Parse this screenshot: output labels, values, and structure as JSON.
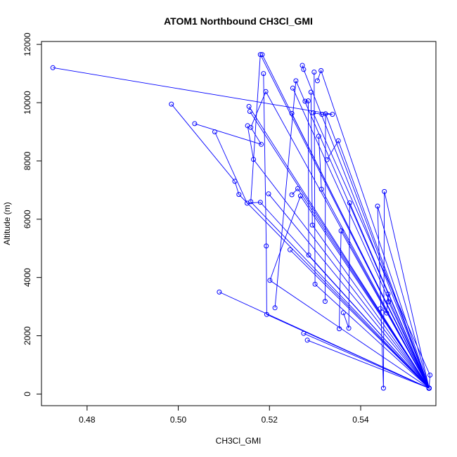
{
  "chart_data": {
    "type": "line",
    "title": "ATOM1 Northbound CH3Cl_GMI",
    "xlabel": "CH3Cl_GMI",
    "ylabel": "Altitude (m)",
    "xlim": [
      0.47,
      0.5565
    ],
    "ylim": [
      -400,
      12100
    ],
    "xticks": [
      0.48,
      0.5,
      0.52,
      0.54
    ],
    "xtick_labels": [
      "0.48",
      "0.50",
      "0.52",
      "0.54"
    ],
    "yticks": [
      0,
      2000,
      4000,
      6000,
      8000,
      10000,
      12000
    ],
    "ytick_labels": [
      "0",
      "2000",
      "4000",
      "6000",
      "8000",
      "10000",
      "12000"
    ],
    "grid": false,
    "line_color": "#0000ff",
    "marker": "open-circle",
    "series": [
      {
        "x": [
          0.4725,
          0.5338,
          0.5315,
          0.5296,
          0.5552,
          0.555,
          0.518,
          0.5159,
          0.555,
          0.555,
          0.555,
          0.5452,
          0.545,
          0.5437,
          0.555,
          0.555,
          0.555,
          0.555,
          0.555,
          0.555,
          0.555,
          0.555,
          0.555,
          0.555,
          0.555,
          0.555,
          0.555,
          0.555,
          0.555,
          0.555,
          0.555,
          0.555,
          0.555,
          0.555,
          0.555,
          0.555
        ],
        "y": [
          11200,
          9600,
          9600,
          9650,
          650,
          200,
          11650,
          6600,
          200,
          200,
          200,
          6950,
          200,
          6450,
          200,
          200,
          200,
          200,
          200,
          200,
          200,
          200,
          200,
          200,
          200,
          200,
          200,
          200,
          200,
          200,
          200,
          200,
          200,
          200,
          200,
          200
        ]
      },
      {
        "x": [
          0.4985,
          0.5124,
          0.5133,
          0.555,
          0.555,
          0.5283,
          0.555,
          0.555,
          0.5251,
          0.555,
          0.555,
          0.555,
          0.555,
          0.555,
          0.555
        ],
        "y": [
          9950,
          7300,
          6850,
          200,
          200,
          1850,
          200,
          200,
          10500,
          200,
          200,
          200,
          200,
          200,
          200
        ]
      },
      {
        "x": [
          0.5036,
          0.5182,
          0.5159,
          0.5192,
          0.555,
          0.555,
          0.555,
          0.5201,
          0.5268,
          0.555,
          0.555,
          0.555
        ],
        "y": [
          9280,
          8570,
          9150,
          10380,
          200,
          200,
          200,
          3900,
          6800,
          200,
          200,
          200
        ]
      },
      {
        "x": [
          0.508,
          0.5151,
          0.518,
          0.555,
          0.555,
          0.555,
          0.555,
          0.555,
          0.555,
          0.555,
          0.555,
          0.555,
          0.555,
          0.555
        ],
        "y": [
          9000,
          6550,
          6580,
          200,
          200,
          200,
          200,
          200,
          200,
          200,
          200,
          200,
          200,
          200
        ]
      },
      {
        "x": [
          0.509,
          0.555,
          0.555,
          0.5275,
          0.555,
          0.555,
          0.555,
          0.555,
          0.555,
          0.555,
          0.555,
          0.555
        ],
        "y": [
          3500,
          200,
          200,
          2080,
          200,
          200,
          200,
          200,
          200,
          200,
          200,
          200
        ]
      },
      {
        "x": [
          0.5152,
          0.5165,
          0.555,
          0.555,
          0.555,
          0.555,
          0.555,
          0.555,
          0.555,
          0.555,
          0.555,
          0.555
        ],
        "y": [
          9210,
          8050,
          200,
          200,
          200,
          200,
          200,
          200,
          200,
          200,
          200,
          200
        ]
      },
      {
        "x": [
          0.5187,
          0.5193,
          0.5194,
          0.555,
          0.555,
          0.555,
          0.555,
          0.555,
          0.555,
          0.555,
          0.555,
          0.555
        ],
        "y": [
          11000,
          5080,
          2730,
          200,
          200,
          200,
          200,
          200,
          200,
          200,
          200,
          200
        ]
      },
      {
        "x": [
          0.5212,
          0.5258,
          0.555,
          0.555,
          0.555,
          0.555,
          0.555,
          0.555,
          0.555,
          0.555,
          0.555,
          0.555
        ],
        "y": [
          2960,
          10750,
          200,
          200,
          200,
          200,
          200,
          200,
          200,
          200,
          200,
          200
        ]
      },
      {
        "x": [
          0.5155,
          0.555,
          0.555,
          0.555,
          0.555,
          0.555,
          0.555,
          0.555,
          0.555,
          0.555
        ],
        "y": [
          9870,
          200,
          200,
          200,
          200,
          200,
          200,
          200,
          200,
          200
        ]
      },
      {
        "x": [
          0.5249,
          0.555,
          0.555,
          0.555,
          0.555,
          0.555,
          0.555,
          0.555,
          0.555,
          0.555
        ],
        "y": [
          9630,
          200,
          200,
          200,
          200,
          200,
          200,
          200,
          200,
          200
        ]
      },
      {
        "x": [
          0.5249,
          0.5262,
          0.555,
          0.555,
          0.555,
          0.555,
          0.555,
          0.555,
          0.555,
          0.555
        ],
        "y": [
          6840,
          7050,
          200,
          200,
          200,
          200,
          200,
          200,
          200,
          200
        ]
      },
      {
        "x": [
          0.5272,
          0.5275,
          0.555,
          0.555,
          0.555,
          0.555,
          0.555,
          0.555,
          0.555
        ],
        "y": [
          11280,
          11140,
          200,
          200,
          200,
          200,
          200,
          200,
          200
        ]
      },
      {
        "x": [
          0.5278,
          0.5285,
          0.5286,
          0.555,
          0.555,
          0.555,
          0.555,
          0.555,
          0.555
        ],
        "y": [
          10050,
          10060,
          4770,
          200,
          200,
          200,
          200,
          200,
          200
        ]
      },
      {
        "x": [
          0.5291,
          0.5294,
          0.555,
          0.555,
          0.555,
          0.555,
          0.555,
          0.555,
          0.555
        ],
        "y": [
          10360,
          5800,
          200,
          200,
          200,
          200,
          200,
          200,
          200
        ]
      },
      {
        "x": [
          0.5298,
          0.53,
          0.555,
          0.555,
          0.555,
          0.555,
          0.555,
          0.555,
          0.555
        ],
        "y": [
          11050,
          3770,
          200,
          200,
          200,
          200,
          200,
          200,
          200
        ]
      },
      {
        "x": [
          0.5305,
          0.5313,
          0.555,
          0.555,
          0.555,
          0.555,
          0.555,
          0.555,
          0.555
        ],
        "y": [
          10750,
          11100,
          200,
          200,
          200,
          200,
          200,
          200,
          200
        ]
      },
      {
        "x": [
          0.5308,
          0.5314,
          0.555,
          0.555,
          0.555,
          0.555,
          0.555,
          0.555,
          0.555
        ],
        "y": [
          8850,
          7030,
          200,
          200,
          200,
          200,
          200,
          200,
          200
        ]
      },
      {
        "x": [
          0.5322,
          0.5323,
          0.555,
          0.555,
          0.555,
          0.555,
          0.555,
          0.555,
          0.555
        ],
        "y": [
          3180,
          9620,
          200,
          200,
          200,
          200,
          200,
          200,
          200
        ]
      },
      {
        "x": [
          0.5326,
          0.5351,
          0.555,
          0.555,
          0.555,
          0.555,
          0.555,
          0.555,
          0.555
        ],
        "y": [
          8040,
          8690,
          200,
          200,
          200,
          200,
          200,
          200,
          200
        ]
      },
      {
        "x": [
          0.5353,
          0.5357,
          0.555,
          0.555,
          0.555,
          0.555,
          0.555,
          0.555
        ],
        "y": [
          2240,
          5600,
          200,
          200,
          200,
          200,
          200,
          200
        ]
      },
      {
        "x": [
          0.5362,
          0.5374,
          0.5376,
          0.555,
          0.555,
          0.555,
          0.555,
          0.555
        ],
        "y": [
          2790,
          2260,
          6560,
          200,
          200,
          200,
          200,
          200
        ]
      },
      {
        "x": [
          0.5443,
          0.5457,
          0.546,
          0.5461,
          0.555,
          0.555,
          0.555,
          0.555
        ],
        "y": [
          2930,
          2780,
          3430,
          3170,
          200,
          200,
          200,
          200
        ]
      },
      {
        "x": [
          0.5184,
          0.555,
          0.555,
          0.555,
          0.555,
          0.555
        ],
        "y": [
          11650,
          200,
          200,
          200,
          200,
          200
        ]
      },
      {
        "x": [
          0.5157,
          0.555,
          0.555,
          0.555,
          0.555
        ],
        "y": [
          9700,
          200,
          200,
          200,
          200
        ]
      },
      {
        "x": [
          0.5198,
          0.555,
          0.555,
          0.555,
          0.555
        ],
        "y": [
          6870,
          200,
          200,
          200,
          200
        ]
      },
      {
        "x": [
          0.5245,
          0.555,
          0.555,
          0.555
        ],
        "y": [
          4950,
          200,
          200,
          200
        ]
      }
    ]
  }
}
